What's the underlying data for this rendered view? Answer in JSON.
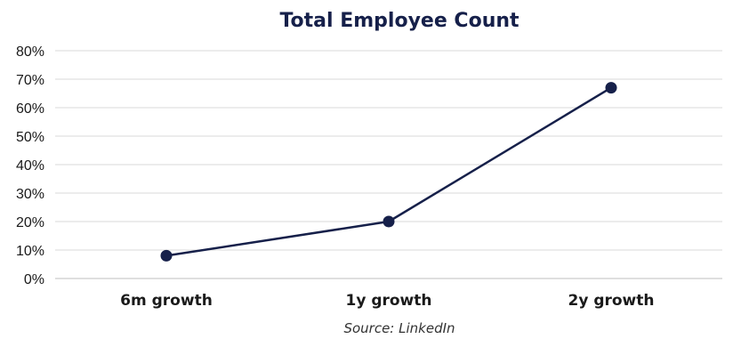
{
  "chart_data": {
    "type": "line",
    "title": "Total Employee Count",
    "categories": [
      "6m growth",
      "1y growth",
      "2y growth"
    ],
    "series": [
      {
        "values": [
          8,
          20,
          67
        ]
      }
    ],
    "y_tick_labels": [
      "0%",
      "10%",
      "20%",
      "30%",
      "40%",
      "50%",
      "60%",
      "70%",
      "80%"
    ],
    "ylim": [
      0,
      80
    ],
    "y_unit": "%",
    "grid": true,
    "legend": "none",
    "source": "Source: LinkedIn",
    "colors": {
      "title": "#16204a",
      "line": "#16204a",
      "marker": "#16204a",
      "grid": "#d9d9d9",
      "axis": "#bfbfbf"
    }
  }
}
